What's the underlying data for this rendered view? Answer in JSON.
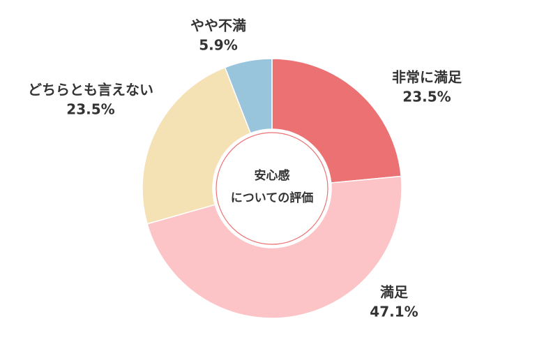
{
  "chart_data": {
    "type": "donut",
    "center_label": [
      "安心感",
      "についての評価"
    ],
    "categories": [
      "非常に満足",
      "満足",
      "どちらとも言えない",
      "やや不満"
    ],
    "values": [
      23.5,
      47.1,
      23.5,
      5.9
    ],
    "value_labels": [
      "23.5%",
      "47.1%",
      "23.5%",
      "5.9%"
    ],
    "colors": [
      "#ec7173",
      "#fcc4c6",
      "#f4e1b4",
      "#98c4dc"
    ]
  }
}
